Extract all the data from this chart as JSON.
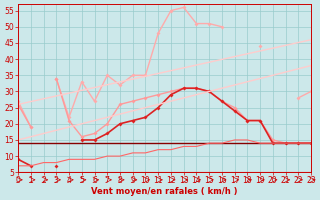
{
  "bg_color": "#cce8ea",
  "grid_color": "#99cccc",
  "xlabel": "Vent moyen/en rafales ( km/h )",
  "xlabel_color": "#cc0000",
  "xmin": 0,
  "xmax": 23,
  "ymin": 5,
  "ymax": 57,
  "yticks": [
    5,
    10,
    15,
    20,
    25,
    30,
    35,
    40,
    45,
    50,
    55
  ],
  "series": [
    {
      "x": [
        0,
        1,
        2,
        3,
        4,
        5,
        6,
        7,
        8,
        9,
        10,
        11,
        12,
        13,
        14,
        15,
        16,
        17,
        18,
        19,
        20,
        21,
        22,
        23
      ],
      "y": [
        27,
        19,
        null,
        34,
        22,
        33,
        27,
        35,
        32,
        35,
        35,
        48,
        55,
        56,
        51,
        51,
        50,
        null,
        null,
        44,
        null,
        null,
        28,
        30
      ],
      "color": "#ffaaaa",
      "lw": 1.0,
      "marker": "D",
      "ms": 2.0
    },
    {
      "x": [
        0,
        1,
        2,
        3,
        4,
        5,
        6,
        7,
        8,
        9,
        10,
        11,
        12,
        13,
        14,
        15,
        16,
        17,
        18,
        19,
        20,
        21,
        22,
        23
      ],
      "y": [
        26,
        19,
        null,
        34,
        21,
        16,
        17,
        20,
        26,
        27,
        28,
        29,
        30,
        31,
        31,
        30,
        27,
        25,
        21,
        21,
        15,
        14,
        14,
        14
      ],
      "color": "#ff9999",
      "lw": 1.0,
      "marker": "D",
      "ms": 2.0
    },
    {
      "x": [
        0,
        1,
        2,
        3,
        4,
        5,
        6,
        7,
        8,
        9,
        10,
        11,
        12,
        13,
        14,
        15,
        16,
        17,
        18,
        19,
        20,
        21,
        22,
        23
      ],
      "y": [
        9,
        7,
        null,
        7,
        null,
        15,
        15,
        17,
        20,
        21,
        22,
        25,
        29,
        31,
        31,
        30,
        27,
        24,
        21,
        21,
        14,
        14,
        14,
        14
      ],
      "color": "#dd2222",
      "lw": 1.2,
      "marker": "D",
      "ms": 2.0
    },
    {
      "x": [
        0,
        23
      ],
      "y": [
        26,
        46
      ],
      "color": "#ffcccc",
      "lw": 1.0,
      "marker": null,
      "ms": 0
    },
    {
      "x": [
        0,
        23
      ],
      "y": [
        15,
        38
      ],
      "color": "#ffcccc",
      "lw": 1.0,
      "marker": null,
      "ms": 0
    },
    {
      "x": [
        0,
        23
      ],
      "y": [
        14,
        14
      ],
      "color": "#880000",
      "lw": 1.0,
      "marker": null,
      "ms": 0
    },
    {
      "x": [
        0,
        1,
        2,
        3,
        4,
        5,
        6,
        7,
        8,
        9,
        10,
        11,
        12,
        13,
        14,
        15,
        16,
        17,
        18,
        19,
        20,
        21,
        22,
        23
      ],
      "y": [
        7,
        7,
        8,
        8,
        9,
        9,
        9,
        10,
        10,
        11,
        11,
        12,
        12,
        13,
        13,
        14,
        14,
        15,
        15,
        14,
        14,
        14,
        14,
        14
      ],
      "color": "#ff6666",
      "lw": 0.8,
      "marker": null,
      "ms": 0
    }
  ],
  "tick_color": "#cc0000",
  "tick_fontsize": 5.5,
  "xlabel_fontsize": 6.0,
  "xlabel_fontweight": "bold"
}
